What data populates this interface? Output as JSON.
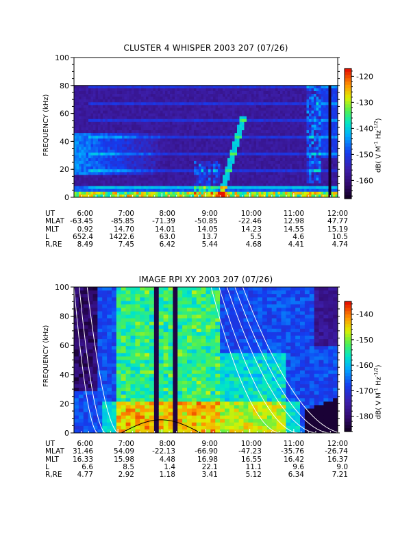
{
  "chart_data": [
    {
      "type": "heatmap",
      "title": "CLUSTER 4 WHISPER 2003 207 (07/26)",
      "ylabel": "FREQUENCY (kHz)",
      "ylim": [
        0,
        100
      ],
      "yticks": [
        "0",
        "20",
        "40",
        "60",
        "80",
        "100"
      ],
      "data_max_frequency_khz": 80,
      "x_tick_labels": [
        "6:00",
        "7:00",
        "8:00",
        "9:00",
        "10:00",
        "11:00",
        "12:00"
      ],
      "colorbar": {
        "label": "dB( V M",
        "ticks": [
          "-120",
          "-130",
          "-140",
          "-150",
          "-160"
        ],
        "range": [
          -167,
          -117
        ]
      },
      "ephemeris": {
        "rows": [
          {
            "name": "UT",
            "values": [
              "6:00",
              "7:00",
              "8:00",
              "9:00",
              "10:00",
              "11:00",
              "12:00"
            ]
          },
          {
            "name": "MLAT",
            "values": [
              "-63.45",
              "-85.85",
              "-71.39",
              "-50.85",
              "-22.46",
              "12.98",
              "47.77"
            ]
          },
          {
            "name": "MLT",
            "values": [
              "0.92",
              "14.70",
              "14.01",
              "14.05",
              "14.23",
              "14.55",
              "15.19"
            ]
          },
          {
            "name": "L",
            "values": [
              "652.4",
              "1422.6",
              "63.0",
              "13.7",
              "5.5",
              "4.6",
              "10.5"
            ]
          },
          {
            "name": "R,RE",
            "values": [
              "8.49",
              "7.45",
              "6.42",
              "5.44",
              "4.68",
              "4.41",
              "4.74"
            ]
          }
        ]
      }
    },
    {
      "type": "heatmap",
      "title": "IMAGE RPI XY 2003 207 (07/26)",
      "ylabel": "FREQUENCY (kHz)",
      "ylim": [
        0,
        100
      ],
      "yticks": [
        "0",
        "20",
        "40",
        "60",
        "80",
        "100"
      ],
      "x_tick_labels": [
        "6:00",
        "7:00",
        "8:00",
        "9:00",
        "10:00",
        "11:00",
        "12:00"
      ],
      "colorbar": {
        "label": "dB( V M",
        "ticks": [
          "-140",
          "-150",
          "-160",
          "-170",
          "-180"
        ],
        "range": [
          -186,
          -135
        ]
      },
      "ephemeris": {
        "rows": [
          {
            "name": "UT",
            "values": [
              "6:00",
              "7:00",
              "8:00",
              "9:00",
              "10:00",
              "11:00",
              "12:00"
            ]
          },
          {
            "name": "MLAT",
            "values": [
              "31.46",
              "54.09",
              "-22.13",
              "-66.90",
              "-47.23",
              "-35.76",
              "-26.74"
            ]
          },
          {
            "name": "MLT",
            "values": [
              "16.33",
              "15.98",
              "4.48",
              "16.98",
              "16.55",
              "16.42",
              "16.37"
            ]
          },
          {
            "name": "L",
            "values": [
              "6.6",
              "8.5",
              "1.4",
              "22.1",
              "11.1",
              "9.6",
              "9.0"
            ]
          },
          {
            "name": "R,RE",
            "values": [
              "4.77",
              "2.92",
              "1.18",
              "3.41",
              "5.12",
              "6.34",
              "7.21"
            ]
          }
        ]
      }
    }
  ]
}
